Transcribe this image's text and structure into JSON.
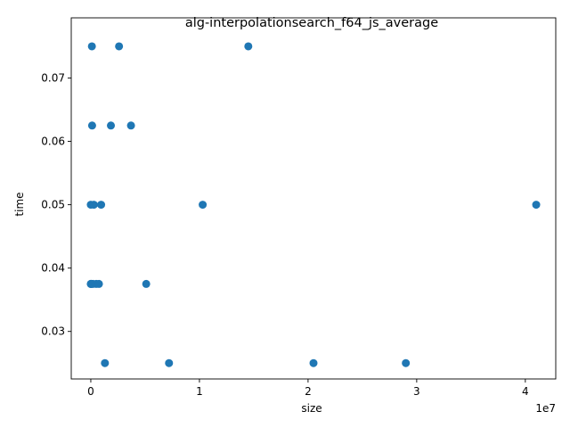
{
  "chart_data": {
    "type": "scatter",
    "title": "alg-interpolationsearch_f64_js_average",
    "xlabel": "size",
    "ylabel": "time",
    "x_offset_label": "1e7",
    "xlim": [
      -1800000,
      42800000
    ],
    "ylim": [
      0.0225,
      0.0795
    ],
    "x_ticks": [
      {
        "value": 0,
        "label": "0"
      },
      {
        "value": 10000000,
        "label": "1"
      },
      {
        "value": 20000000,
        "label": "2"
      },
      {
        "value": 30000000,
        "label": "3"
      },
      {
        "value": 40000000,
        "label": "4"
      }
    ],
    "y_ticks": [
      {
        "value": 0.03,
        "label": "0.03"
      },
      {
        "value": 0.04,
        "label": "0.04"
      },
      {
        "value": 0.05,
        "label": "0.05"
      },
      {
        "value": 0.06,
        "label": "0.06"
      },
      {
        "value": 0.07,
        "label": "0.07"
      }
    ],
    "marker_color": "#1f77b4",
    "series": [
      {
        "name": "average",
        "points": [
          {
            "x": 100,
            "y": 0.0375
          },
          {
            "x": 1000,
            "y": 0.05
          },
          {
            "x": 10000,
            "y": 0.0375
          },
          {
            "x": 50000,
            "y": 0.0375
          },
          {
            "x": 100000,
            "y": 0.075
          },
          {
            "x": 120000,
            "y": 0.0625
          },
          {
            "x": 200000,
            "y": 0.0375
          },
          {
            "x": 280000,
            "y": 0.05
          },
          {
            "x": 500000,
            "y": 0.0375
          },
          {
            "x": 750000,
            "y": 0.0375
          },
          {
            "x": 950000,
            "y": 0.05
          },
          {
            "x": 1300000,
            "y": 0.025
          },
          {
            "x": 1850000,
            "y": 0.0625
          },
          {
            "x": 2600000,
            "y": 0.075
          },
          {
            "x": 3700000,
            "y": 0.0625
          },
          {
            "x": 5100000,
            "y": 0.0375
          },
          {
            "x": 7200000,
            "y": 0.025
          },
          {
            "x": 10300000,
            "y": 0.05
          },
          {
            "x": 14500000,
            "y": 0.075
          },
          {
            "x": 20500000,
            "y": 0.025
          },
          {
            "x": 29000000,
            "y": 0.025
          },
          {
            "x": 41000000,
            "y": 0.05
          }
        ]
      }
    ]
  }
}
